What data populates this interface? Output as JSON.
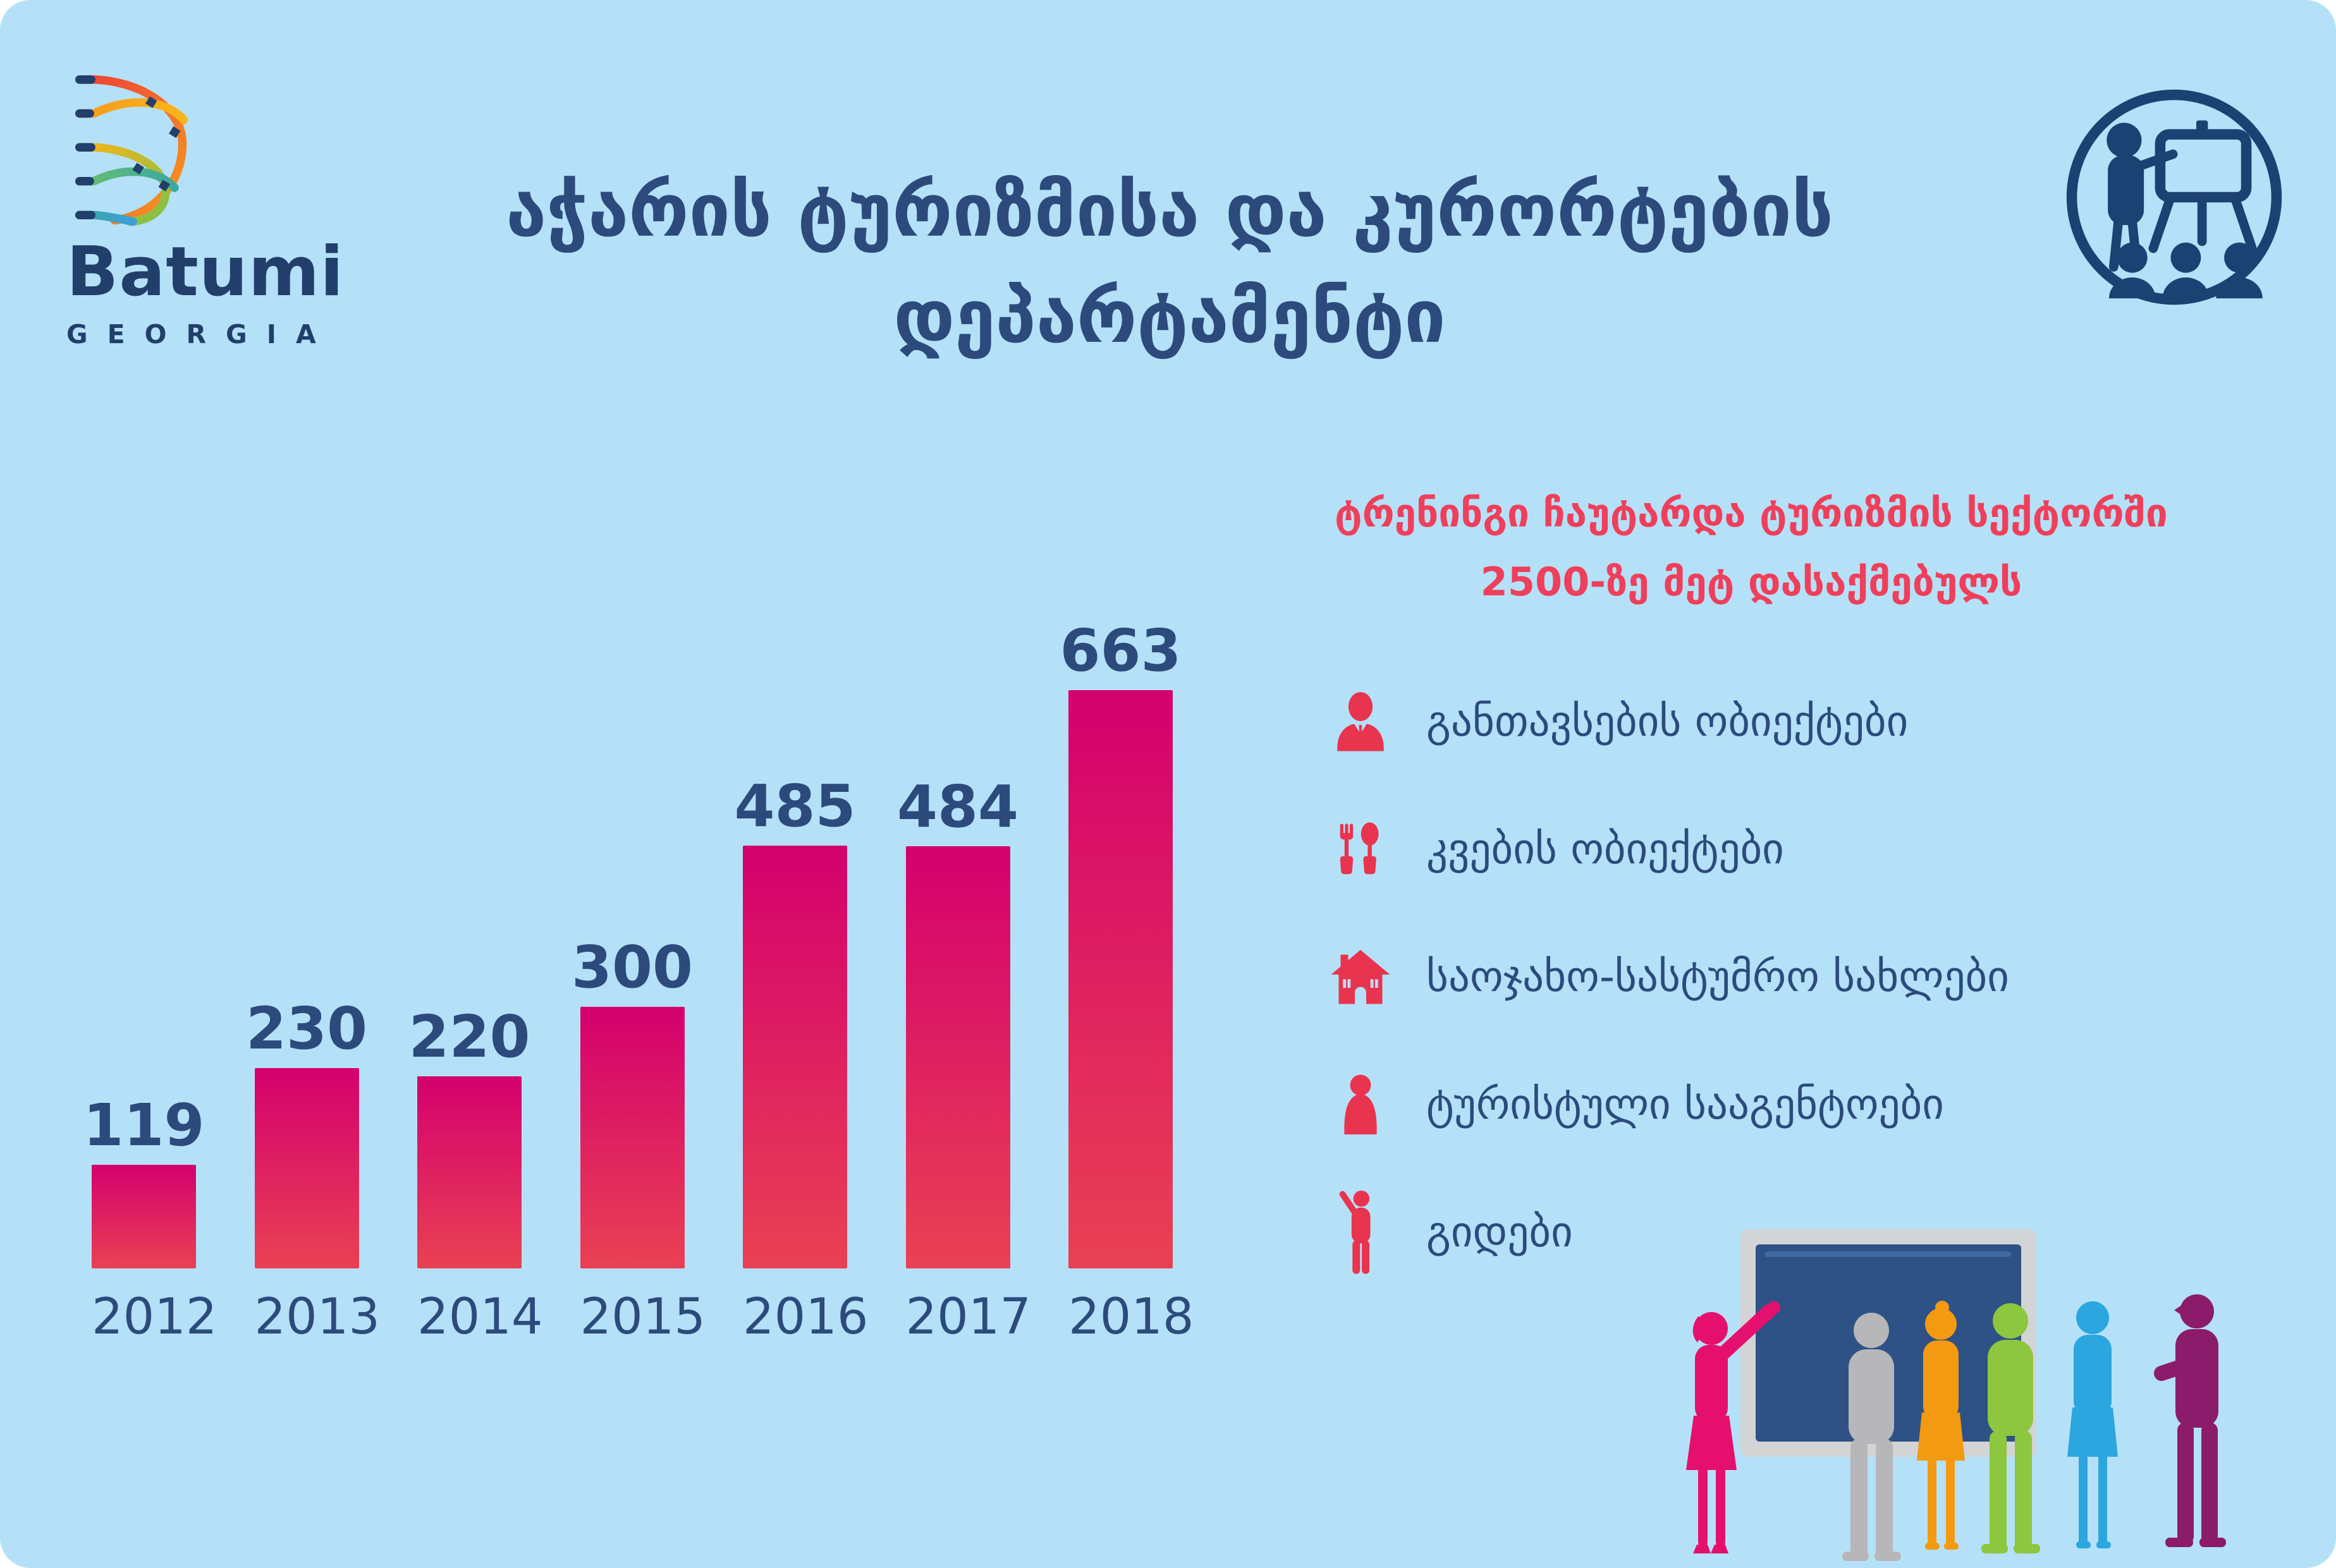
{
  "poster": {
    "background_color": "#b5e1f8",
    "title_line1": "აჭარის  ტურიზმისა და კურორტების",
    "title_line2": "დეპარტამენტი",
    "subtitle_line1": "ტრენინგი ჩაუტარდა ტურიზმის სექტორში",
    "subtitle_line2": "2500-ზე მეტ დასაქმებულს"
  },
  "logo": {
    "name": "Batumi",
    "subname": "GEORGIA",
    "navy": "#223f6b"
  },
  "chart_data": {
    "type": "bar",
    "categories": [
      "2012",
      "2013",
      "2014",
      "2015",
      "2016",
      "2017",
      "2018"
    ],
    "values": [
      119,
      230,
      220,
      300,
      485,
      484,
      663
    ],
    "title": "",
    "xlabel": "",
    "ylabel": "",
    "ylim": [
      0,
      663
    ],
    "grid": false,
    "legend": false,
    "value_labels": "above bars",
    "bar_gradient_top": "#d4006e",
    "bar_gradient_bottom": "#e94153",
    "label_color": "#2c4b7c"
  },
  "features": [
    {
      "icon": "person-bust-icon",
      "label": "განთავსების ობიექტები"
    },
    {
      "icon": "cutlery-icon",
      "label": "კვების ობიექტები"
    },
    {
      "icon": "house-icon",
      "label": "საოჯახო-სასტუმრო სახლები"
    },
    {
      "icon": "person-icon",
      "label": "ტურისტული სააგენტოები"
    },
    {
      "icon": "guide-icon",
      "label": "გიდები"
    }
  ],
  "colors": {
    "navy_text": "#2c4b7c",
    "red_accent": "#ef3f5b",
    "icon_crimson": "#e9344f",
    "badge_navy": "#1c4273"
  },
  "illustration": {
    "board_frame": "#d3d4d6",
    "board_screen": "#2e5286",
    "people_colors": [
      "#e5106d",
      "#b7b7b9",
      "#f49a12",
      "#8dc63f",
      "#2ca6df",
      "#8b1c6c"
    ]
  }
}
